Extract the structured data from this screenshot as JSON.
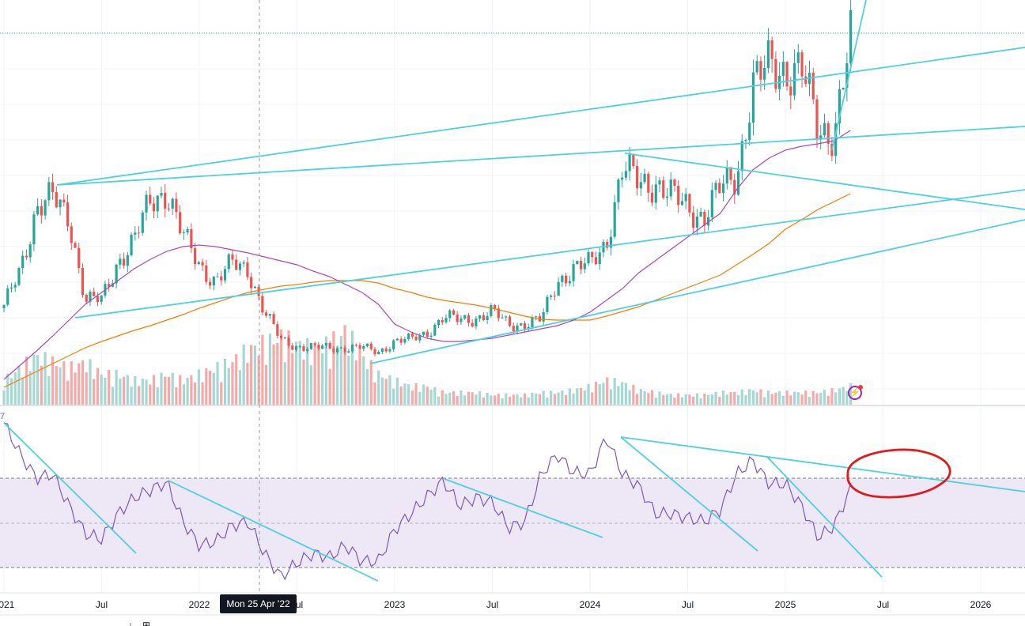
{
  "crosshair_label": "Mon 25 Apr '22",
  "rsi_label_fragment": "7",
  "colors": {
    "up": "#26a69a",
    "down": "#ef5350",
    "ma_fast": "#ab47bc",
    "ma_slow": "#f57c00",
    "rsi": "#7e57c2",
    "trendline": "#4dd0e1",
    "annotation": "#e0191b",
    "rsi_band": "#ede7f6"
  },
  "chart_data": {
    "type": "candlestick",
    "title": "",
    "period": "weekly",
    "x_start": "2021-01",
    "x_step": "month",
    "x_ticks": [
      {
        "label": "2021",
        "year": 2021.0
      },
      {
        "label": "Jul",
        "year": 2021.5
      },
      {
        "label": "2022",
        "year": 2022.0
      },
      {
        "label": "Jul",
        "year": 2022.5
      },
      {
        "label": "2023",
        "year": 2023.0
      },
      {
        "label": "Jul",
        "year": 2023.5
      },
      {
        "label": "2024",
        "year": 2024.0
      },
      {
        "label": "Jul",
        "year": 2024.5
      },
      {
        "label": "2025",
        "year": 2025.0
      },
      {
        "label": "Jul",
        "year": 2025.5
      },
      {
        "label": "2026",
        "year": 2026.0
      }
    ],
    "monthly_close": [
      32.5,
      45,
      64.5,
      67,
      61.25,
      35,
      35,
      47.5,
      53.75,
      66.25,
      70,
      55,
      46.25,
      41.25,
      46.25,
      45,
      31.25,
      22.5,
      20.5,
      20,
      20,
      20,
      20,
      18.75,
      22,
      22.5,
      25,
      29.5,
      28.75,
      29.5,
      31.25,
      27.5,
      27.5,
      28.75,
      41.25,
      45,
      46.25,
      53.75,
      76.25,
      72.5,
      72.5,
      67.5,
      65,
      61.25,
      70,
      75,
      102.5,
      108.75,
      108.75,
      107.5,
      88.75,
      88.75,
      117
    ],
    "ma_fast": [
      10,
      14.5,
      19,
      23.75,
      28.75,
      33.75,
      37.5,
      41.25,
      45,
      48,
      50.5,
      52,
      52.5,
      52,
      51,
      50,
      48.75,
      47.5,
      46.25,
      44.25,
      42.5,
      40,
      37.5,
      33.75,
      27.5,
      25,
      23,
      22,
      22,
      22.5,
      23,
      24,
      25,
      26,
      27,
      28.75,
      31.25,
      35,
      38.75,
      43.75,
      47.5,
      51.25,
      55,
      58.75,
      62.5,
      70,
      76.25,
      80,
      82.5,
      83.75,
      84.5,
      85.5,
      88.75
    ],
    "ma_slow": [
      7.5,
      10,
      12.5,
      15,
      17.5,
      20,
      22,
      23.75,
      25.5,
      27,
      28.75,
      30.5,
      32.5,
      34.25,
      36,
      37.5,
      38.5,
      39.5,
      40,
      40.75,
      41.25,
      41.25,
      41.25,
      40.5,
      38.75,
      37.5,
      36,
      35,
      34.25,
      33.5,
      32.5,
      31.25,
      30,
      29,
      28.75,
      28.75,
      28.75,
      30,
      31.5,
      33,
      35,
      37,
      39,
      41,
      43,
      46.25,
      49.5,
      53,
      57.5,
      60.5,
      63.75,
      66.25,
      68.75
    ],
    "volume": [
      20,
      30,
      40,
      35,
      30,
      35,
      25,
      25,
      20,
      20,
      25,
      20,
      25,
      30,
      35,
      45,
      50,
      55,
      50,
      45,
      50,
      60,
      40,
      25,
      20,
      15,
      15,
      10,
      10,
      10,
      8,
      8,
      8,
      10,
      10,
      12,
      15,
      20,
      18,
      12,
      10,
      8,
      8,
      8,
      10,
      10,
      12,
      10,
      10,
      10,
      10,
      12,
      15
    ],
    "rsi": [
      94.8,
      80.6,
      70,
      71.8,
      57.6,
      45.2,
      42.7,
      54.1,
      61.2,
      64.7,
      68.2,
      50.5,
      39.9,
      41.6,
      48.7,
      50.5,
      36.3,
      25.8,
      32.1,
      36.3,
      34.6,
      39.9,
      32.8,
      32.8,
      47,
      54.1,
      61.9,
      68.9,
      57.6,
      61.2,
      59.4,
      47.7,
      50.5,
      71.8,
      80.6,
      72.5,
      71.8,
      88.4,
      71.8,
      66.5,
      54.1,
      54.1,
      52.3,
      50.5,
      55.8,
      71.8,
      78.1,
      67.5,
      67.5,
      57.6,
      43.4,
      48.7,
      65.3
    ],
    "rsi_bands": [
      70,
      50,
      30
    ],
    "ylim": [
      0,
      130
    ]
  }
}
